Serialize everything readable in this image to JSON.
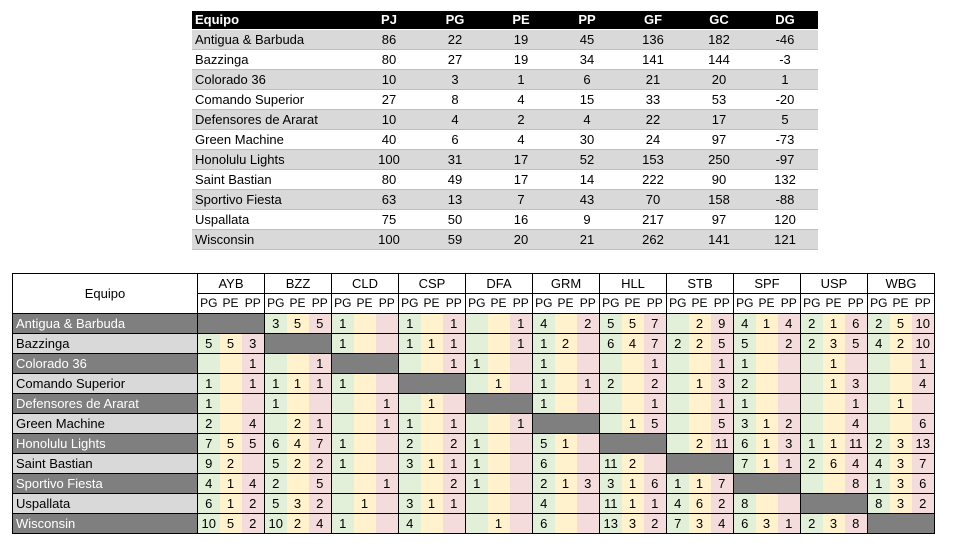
{
  "summary": {
    "headers": [
      "Equipo",
      "PJ",
      "PG",
      "PE",
      "PP",
      "GF",
      "GC",
      "DG"
    ],
    "rows": [
      [
        "Antigua & Barbuda",
        "86",
        "22",
        "19",
        "45",
        "136",
        "182",
        "-46"
      ],
      [
        "Bazzinga",
        "80",
        "27",
        "19",
        "34",
        "141",
        "144",
        "-3"
      ],
      [
        "Colorado 36",
        "10",
        "3",
        "1",
        "6",
        "21",
        "20",
        "1"
      ],
      [
        "Comando Superior",
        "27",
        "8",
        "4",
        "15",
        "33",
        "53",
        "-20"
      ],
      [
        "Defensores de Ararat",
        "10",
        "4",
        "2",
        "4",
        "22",
        "17",
        "5"
      ],
      [
        "Green Machine",
        "40",
        "6",
        "4",
        "30",
        "24",
        "97",
        "-73"
      ],
      [
        "Honolulu Lights",
        "100",
        "31",
        "17",
        "52",
        "153",
        "250",
        "-97"
      ],
      [
        "Saint Bastian",
        "80",
        "49",
        "17",
        "14",
        "222",
        "90",
        "132"
      ],
      [
        "Sportivo Fiesta",
        "63",
        "13",
        "7",
        "43",
        "70",
        "158",
        "-88"
      ],
      [
        "Uspallata",
        "75",
        "50",
        "16",
        "9",
        "217",
        "97",
        "120"
      ],
      [
        "Wisconsin",
        "100",
        "59",
        "20",
        "21",
        "262",
        "141",
        "121"
      ]
    ]
  },
  "cross": {
    "corner": "Equipo",
    "codes": [
      "AYB",
      "BZZ",
      "CLD",
      "CSP",
      "DFA",
      "GRM",
      "HLL",
      "STB",
      "SPF",
      "USP",
      "WBG"
    ],
    "sub": [
      "PG",
      "PE",
      "PP"
    ],
    "teams": [
      "Antigua & Barbuda",
      "Bazzinga",
      "Colorado 36",
      "Comando Superior",
      "Defensores de Ararat",
      "Green Machine",
      "Honolulu Lights",
      "Saint Bastian",
      "Sportivo Fiesta",
      "Uspallata",
      "Wisconsin"
    ],
    "rows": [
      [
        [
          "",
          "",
          ""
        ],
        [
          "3",
          "5",
          "5"
        ],
        [
          "1",
          "",
          ""
        ],
        [
          "1",
          "",
          "1"
        ],
        [
          "",
          "",
          "1"
        ],
        [
          "4",
          "",
          "2"
        ],
        [
          "5",
          "5",
          "7"
        ],
        [
          "",
          "2",
          "9"
        ],
        [
          "4",
          "1",
          "4"
        ],
        [
          "2",
          "1",
          "6"
        ],
        [
          "2",
          "5",
          "10"
        ]
      ],
      [
        [
          "5",
          "5",
          "3"
        ],
        [
          "",
          "",
          ""
        ],
        [
          "1",
          "",
          ""
        ],
        [
          "1",
          "1",
          "1"
        ],
        [
          "",
          "",
          "1"
        ],
        [
          "1",
          "2",
          ""
        ],
        [
          "6",
          "4",
          "7"
        ],
        [
          "2",
          "2",
          "5"
        ],
        [
          "5",
          "",
          "2"
        ],
        [
          "2",
          "3",
          "5"
        ],
        [
          "4",
          "2",
          "10"
        ]
      ],
      [
        [
          "",
          "",
          "1"
        ],
        [
          "",
          "",
          "1"
        ],
        [
          "",
          "",
          ""
        ],
        [
          "",
          "",
          "1"
        ],
        [
          "1",
          "",
          ""
        ],
        [
          "1",
          "",
          ""
        ],
        [
          "",
          "",
          "1"
        ],
        [
          "",
          "",
          "1"
        ],
        [
          "1",
          "",
          ""
        ],
        [
          "",
          "1",
          ""
        ],
        [
          "",
          "",
          "1"
        ]
      ],
      [
        [
          "1",
          "",
          "1"
        ],
        [
          "1",
          "1",
          "1"
        ],
        [
          "1",
          "",
          ""
        ],
        [
          "",
          "",
          ""
        ],
        [
          "",
          "1",
          ""
        ],
        [
          "1",
          "",
          "1"
        ],
        [
          "2",
          "",
          "2"
        ],
        [
          "",
          "1",
          "3"
        ],
        [
          "2",
          "",
          ""
        ],
        [
          "",
          "1",
          "3"
        ],
        [
          "",
          "",
          "4"
        ]
      ],
      [
        [
          "1",
          "",
          ""
        ],
        [
          "1",
          "",
          ""
        ],
        [
          "",
          "",
          "1"
        ],
        [
          "",
          "1",
          ""
        ],
        [
          "",
          "",
          ""
        ],
        [
          "1",
          "",
          ""
        ],
        [
          "",
          "",
          "1"
        ],
        [
          "",
          "",
          "1"
        ],
        [
          "1",
          "",
          ""
        ],
        [
          "",
          "",
          "1"
        ],
        [
          "",
          "1",
          ""
        ]
      ],
      [
        [
          "2",
          "",
          "4"
        ],
        [
          "",
          "2",
          "1"
        ],
        [
          "",
          "",
          "1"
        ],
        [
          "1",
          "",
          "1"
        ],
        [
          "",
          "",
          "1"
        ],
        [
          "",
          "",
          ""
        ],
        [
          "",
          "1",
          "5"
        ],
        [
          "",
          "",
          "5"
        ],
        [
          "3",
          "1",
          "2"
        ],
        [
          "",
          "",
          "4"
        ],
        [
          "",
          "",
          "6"
        ]
      ],
      [
        [
          "7",
          "5",
          "5"
        ],
        [
          "6",
          "4",
          "7"
        ],
        [
          "1",
          "",
          ""
        ],
        [
          "2",
          "",
          "2"
        ],
        [
          "1",
          "",
          ""
        ],
        [
          "5",
          "1",
          ""
        ],
        [
          "",
          "",
          ""
        ],
        [
          "",
          "2",
          "11"
        ],
        [
          "6",
          "1",
          "3"
        ],
        [
          "1",
          "1",
          "11"
        ],
        [
          "2",
          "3",
          "13"
        ]
      ],
      [
        [
          "9",
          "2",
          ""
        ],
        [
          "5",
          "2",
          "2"
        ],
        [
          "1",
          "",
          ""
        ],
        [
          "3",
          "1",
          "1"
        ],
        [
          "1",
          "",
          ""
        ],
        [
          "6",
          "",
          ""
        ],
        [
          "11",
          "2",
          ""
        ],
        [
          "",
          "",
          ""
        ],
        [
          "7",
          "1",
          "1"
        ],
        [
          "2",
          "6",
          "4"
        ],
        [
          "4",
          "3",
          "7"
        ]
      ],
      [
        [
          "4",
          "1",
          "4"
        ],
        [
          "2",
          "",
          "5"
        ],
        [
          "",
          "",
          "1"
        ],
        [
          "",
          "",
          "2"
        ],
        [
          "1",
          "",
          ""
        ],
        [
          "2",
          "1",
          "3"
        ],
        [
          "3",
          "1",
          "6"
        ],
        [
          "1",
          "1",
          "7"
        ],
        [
          "",
          "",
          ""
        ],
        [
          "",
          "",
          "8"
        ],
        [
          "1",
          "3",
          "6"
        ]
      ],
      [
        [
          "6",
          "1",
          "2"
        ],
        [
          "5",
          "3",
          "2"
        ],
        [
          "",
          "1",
          ""
        ],
        [
          "3",
          "1",
          "1"
        ],
        [
          "",
          "",
          ""
        ],
        [
          "4",
          "",
          ""
        ],
        [
          "11",
          "1",
          "1"
        ],
        [
          "4",
          "6",
          "2"
        ],
        [
          "8",
          "",
          ""
        ],
        [
          "",
          "",
          ""
        ],
        [
          "8",
          "3",
          "2"
        ]
      ],
      [
        [
          "10",
          "5",
          "2"
        ],
        [
          "10",
          "2",
          "4"
        ],
        [
          "1",
          "",
          ""
        ],
        [
          "4",
          "",
          ""
        ],
        [
          "",
          "1",
          ""
        ],
        [
          "6",
          "",
          ""
        ],
        [
          "13",
          "3",
          "2"
        ],
        [
          "7",
          "3",
          "4"
        ],
        [
          "6",
          "3",
          "1"
        ],
        [
          "2",
          "3",
          "8"
        ],
        [
          "",
          "",
          ""
        ]
      ]
    ]
  }
}
